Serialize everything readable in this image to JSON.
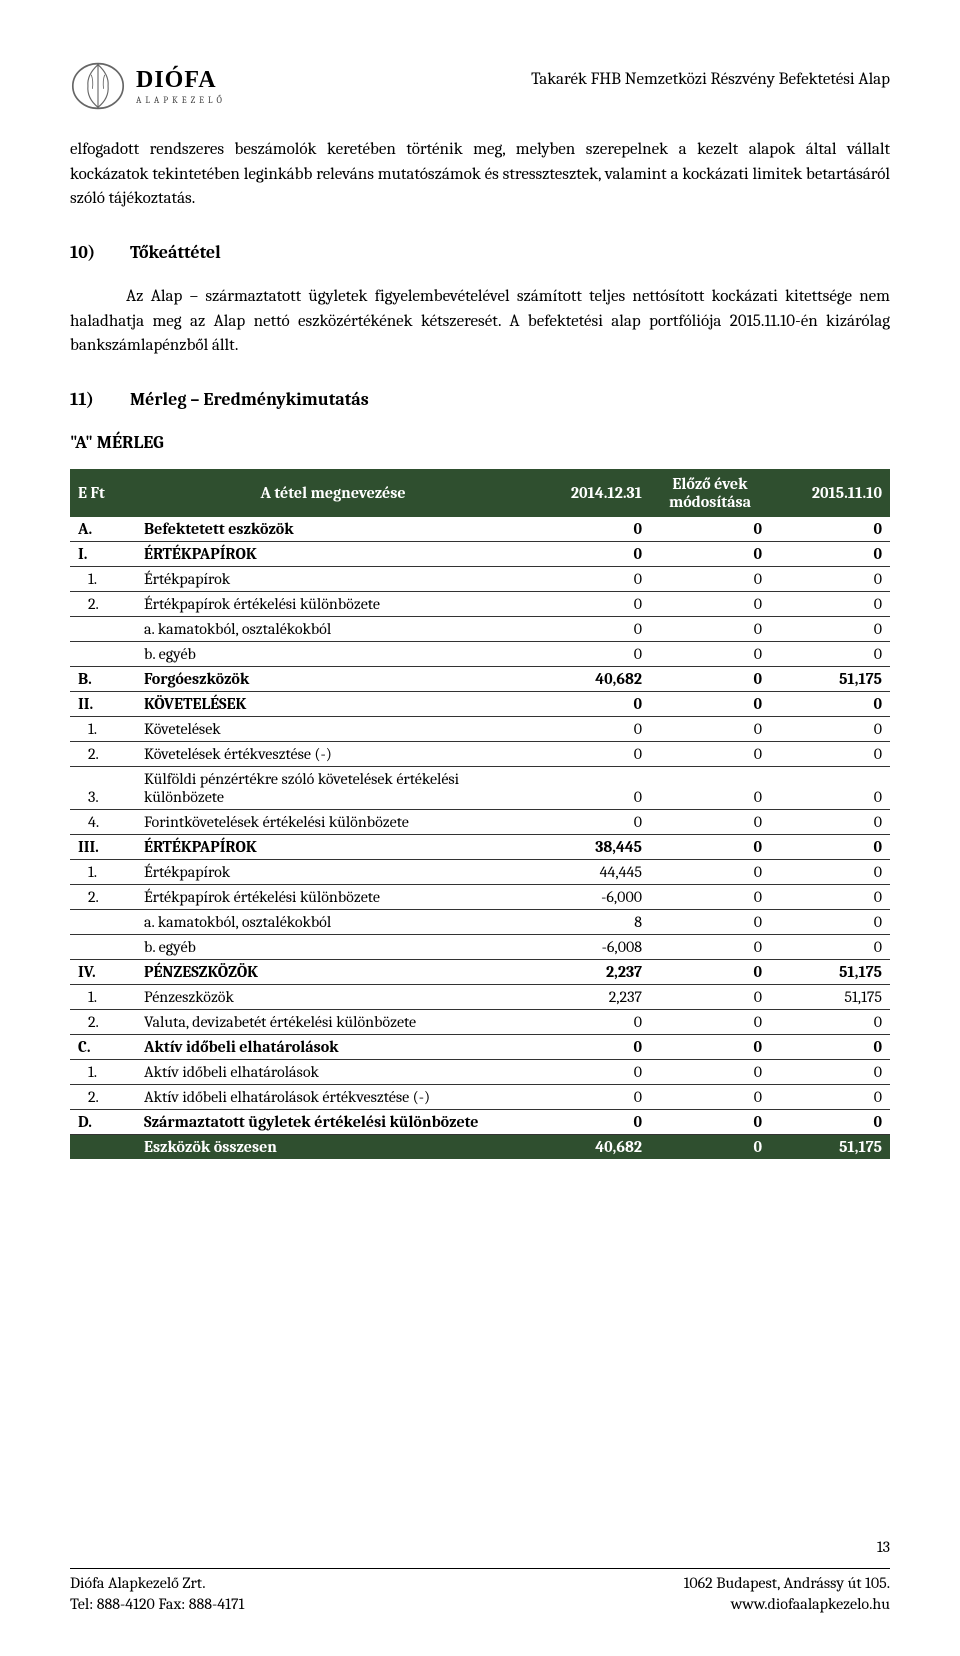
{
  "header": {
    "logo_name": "DIÓFA",
    "logo_sub": "ALAPKEZELŐ",
    "doc_title": "Takarék FHB Nemzetközi Részvény Befektetési Alap"
  },
  "para1": "elfogadott rendszeres beszámolók keretében történik meg, melyben szerepelnek a kezelt alapok által vállalt kockázatok tekintetében leginkább releváns mutatószámok és stressztesztek, valamint a kockázati limitek betartásáról szóló tájékoztatás.",
  "section10": {
    "num": "10)",
    "title": "Tőkeáttétel"
  },
  "para2": "Az Alap – származtatott ügyletek figyelembevételével számított teljes nettósított kockázati kitettsége nem haladhatja meg az Alap nettó eszközértékének kétszeresét. A befektetési alap portfóliója 2015.11.10-én kizárólag bankszámlapénzből állt.",
  "section11": {
    "num": "11)",
    "title": "Mérleg – Eredménykimutatás"
  },
  "subhead": "\"A\" MÉRLEG",
  "table": {
    "headers": {
      "col1": "E Ft",
      "col2": "A tétel megnevezése",
      "col3": "2014.12.31",
      "col4": "Előző évek módosítása",
      "col5": "2015.11.10"
    },
    "rows": [
      {
        "code": "A.",
        "name": "Befektetett eszközök",
        "v1": "0",
        "v2": "0",
        "v3": "0",
        "bold": true,
        "indent": 0
      },
      {
        "code": "I.",
        "name": "ÉRTÉKPAPÍROK",
        "v1": "0",
        "v2": "0",
        "v3": "0",
        "bold": true,
        "indent": 0
      },
      {
        "code": "1.",
        "name": "Értékpapírok",
        "v1": "0",
        "v2": "0",
        "v3": "0",
        "bold": false,
        "indent": 1
      },
      {
        "code": "2.",
        "name": "Értékpapírok értékelési különbözete",
        "v1": "0",
        "v2": "0",
        "v3": "0",
        "bold": false,
        "indent": 1
      },
      {
        "code": "",
        "name": "a. kamatokból, osztalékokból",
        "v1": "0",
        "v2": "0",
        "v3": "0",
        "bold": false,
        "indent": 2
      },
      {
        "code": "",
        "name": "b. egyéb",
        "v1": "0",
        "v2": "0",
        "v3": "0",
        "bold": false,
        "indent": 2
      },
      {
        "code": "B.",
        "name": "Forgóeszközök",
        "v1": "40,682",
        "v2": "0",
        "v3": "51,175",
        "bold": true,
        "indent": 0
      },
      {
        "code": "II.",
        "name": "KÖVETELÉSEK",
        "v1": "0",
        "v2": "0",
        "v3": "0",
        "bold": true,
        "indent": 0
      },
      {
        "code": "1.",
        "name": "Követelések",
        "v1": "0",
        "v2": "0",
        "v3": "0",
        "bold": false,
        "indent": 1
      },
      {
        "code": "2.",
        "name": "Követelések értékvesztése (-)",
        "v1": "0",
        "v2": "0",
        "v3": "0",
        "bold": false,
        "indent": 1
      },
      {
        "code": "3.",
        "name": "Külföldi pénzértékre szóló követelések értékelési különbözete",
        "v1": "0",
        "v2": "0",
        "v3": "0",
        "bold": false,
        "indent": 1
      },
      {
        "code": "4.",
        "name": "Forintkövetelések értékelési különbözete",
        "v1": "0",
        "v2": "0",
        "v3": "0",
        "bold": false,
        "indent": 1
      },
      {
        "code": "III.",
        "name": "ÉRTÉKPAPÍROK",
        "v1": "38,445",
        "v2": "0",
        "v3": "0",
        "bold": true,
        "indent": 0
      },
      {
        "code": "1.",
        "name": "Értékpapírok",
        "v1": "44,445",
        "v2": "0",
        "v3": "0",
        "bold": false,
        "indent": 1
      },
      {
        "code": "2.",
        "name": "Értékpapírok értékelési különbözete",
        "v1": "-6,000",
        "v2": "0",
        "v3": "0",
        "bold": false,
        "indent": 1
      },
      {
        "code": "",
        "name": "a. kamatokból, osztalékokból",
        "v1": "8",
        "v2": "0",
        "v3": "0",
        "bold": false,
        "indent": 2
      },
      {
        "code": "",
        "name": "b. egyéb",
        "v1": "-6,008",
        "v2": "0",
        "v3": "0",
        "bold": false,
        "indent": 2
      },
      {
        "code": "IV.",
        "name": "PÉNZESZKÖZÖK",
        "v1": "2,237",
        "v2": "0",
        "v3": "51,175",
        "bold": true,
        "indent": 0
      },
      {
        "code": "1.",
        "name": "Pénzeszközök",
        "v1": "2,237",
        "v2": "0",
        "v3": "51,175",
        "bold": false,
        "indent": 1
      },
      {
        "code": "2.",
        "name": "Valuta, devizabetét értékelési különbözete",
        "v1": "0",
        "v2": "0",
        "v3": "0",
        "bold": false,
        "indent": 1
      },
      {
        "code": "C.",
        "name": "Aktív időbeli elhatárolások",
        "v1": "0",
        "v2": "0",
        "v3": "0",
        "bold": true,
        "indent": 0
      },
      {
        "code": "1.",
        "name": "Aktív időbeli elhatárolások",
        "v1": "0",
        "v2": "0",
        "v3": "0",
        "bold": false,
        "indent": 1
      },
      {
        "code": "2.",
        "name": "Aktív időbeli elhatárolások értékvesztése (-)",
        "v1": "0",
        "v2": "0",
        "v3": "0",
        "bold": false,
        "indent": 1
      },
      {
        "code": "D.",
        "name": "Származtatott ügyletek értékelési különbözete",
        "v1": "0",
        "v2": "0",
        "v3": "0",
        "bold": true,
        "indent": 0
      }
    ],
    "total": {
      "name": "Eszközök összesen",
      "v1": "40,682",
      "v2": "0",
      "v3": "51,175"
    }
  },
  "page_number": "13",
  "footer": {
    "company": "Diófa Alapkezelő Zrt.",
    "contact": "Tel: 888-4120    Fax: 888-4171",
    "address": "1062 Budapest, Andrássy út 105.",
    "url": "www.diofaalapkezelo.hu"
  },
  "colors": {
    "header_bg": "#2f4f2f",
    "header_fg": "#ffffff",
    "text": "#000000",
    "border": "#333333"
  }
}
